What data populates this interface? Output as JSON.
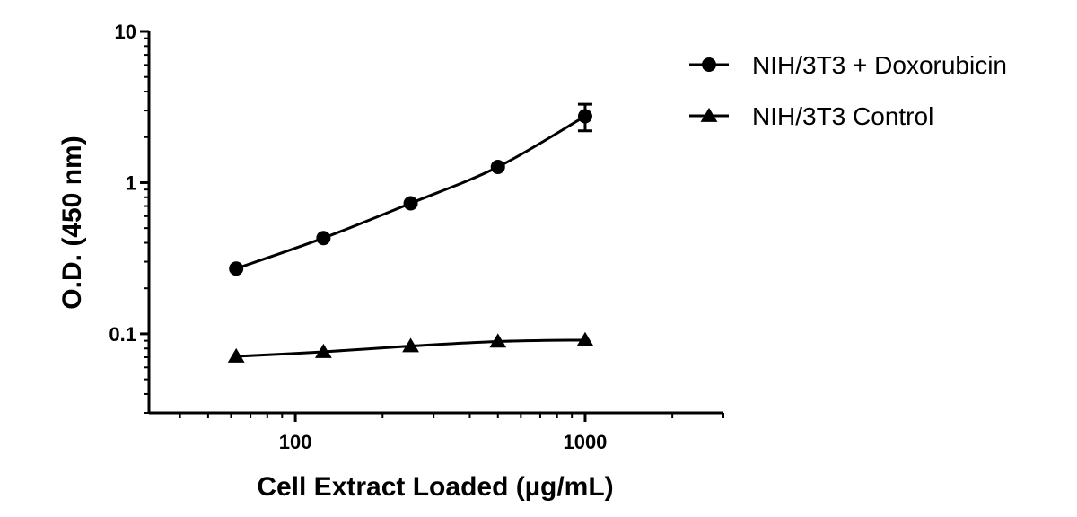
{
  "chart_data": {
    "type": "scatter",
    "title": "",
    "xlabel": "Cell Extract Loaded (µg/mL)",
    "ylabel": "O.D. (450 nm)",
    "xscale": "log",
    "yscale": "log",
    "xlim": [
      31.25,
      3000
    ],
    "ylim": [
      0.03,
      10
    ],
    "x_ticks": [
      {
        "value": 100,
        "label": "100"
      },
      {
        "value": 1000,
        "label": "1000"
      }
    ],
    "y_ticks": [
      {
        "value": 0.1,
        "label": "0.1"
      },
      {
        "value": 1,
        "label": "1"
      },
      {
        "value": 10,
        "label": "10"
      }
    ],
    "grid": false,
    "legend_position": "top-right",
    "x": [
      62.5,
      125,
      250,
      500,
      1000
    ],
    "series": [
      {
        "name": "NIH/3T3 + Doxorubicin",
        "marker": "circle",
        "values": [
          0.27,
          0.43,
          0.73,
          1.27,
          2.75
        ],
        "error": [
          0,
          0,
          0,
          0,
          0.55
        ]
      },
      {
        "name": "NIH/3T3 Control",
        "marker": "triangle",
        "values": [
          0.071,
          0.076,
          0.083,
          0.089,
          0.091
        ],
        "error": [
          0,
          0,
          0,
          0,
          0
        ]
      }
    ]
  }
}
